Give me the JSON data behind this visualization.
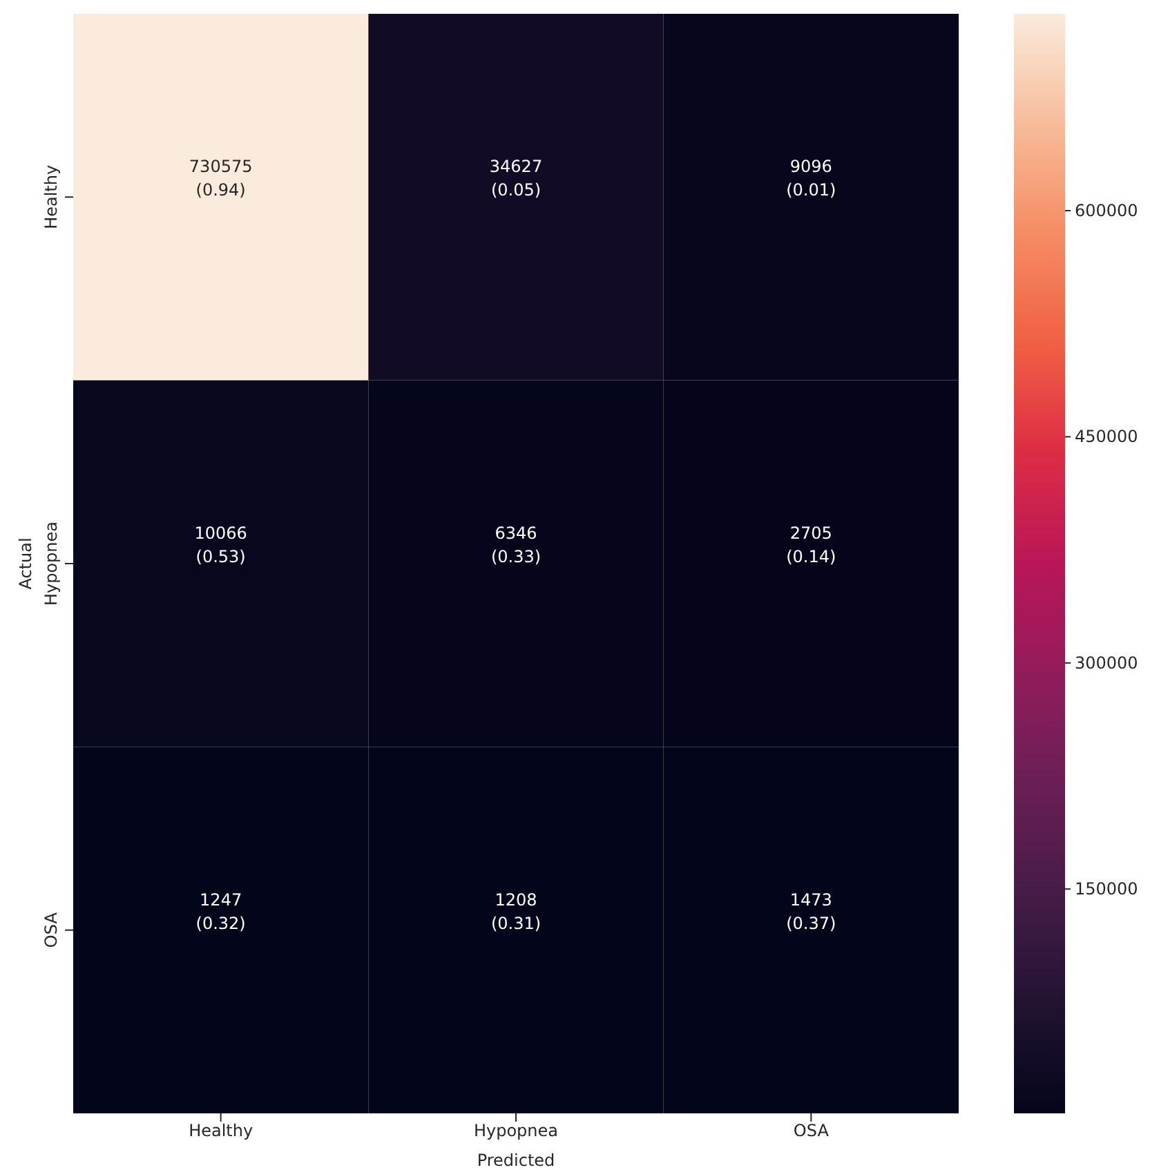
{
  "chart_data": {
    "type": "heatmap",
    "xlabel": "Predicted",
    "ylabel": "Actual",
    "categories": [
      "Healthy",
      "Hypopnea",
      "OSA"
    ],
    "y_categories": [
      "Healthy",
      "Hypopnea",
      "OSA"
    ],
    "cells": [
      [
        730575,
        34627,
        9096
      ],
      [
        10066,
        6346,
        2705
      ],
      [
        1247,
        1208,
        1473
      ]
    ],
    "cell_labels": [
      [
        "730575\n(0.94)",
        "34627\n(0.05)",
        "9096\n(0.01)"
      ],
      [
        "10066\n(0.53)",
        "6346\n(0.33)",
        "2705\n(0.14)"
      ],
      [
        "1247\n(0.32)",
        "1208\n(0.31)",
        "1473\n(0.37)"
      ]
    ],
    "clim": [
      1208,
      730575
    ],
    "cticks": [
      150000,
      300000,
      450000,
      600000
    ]
  }
}
